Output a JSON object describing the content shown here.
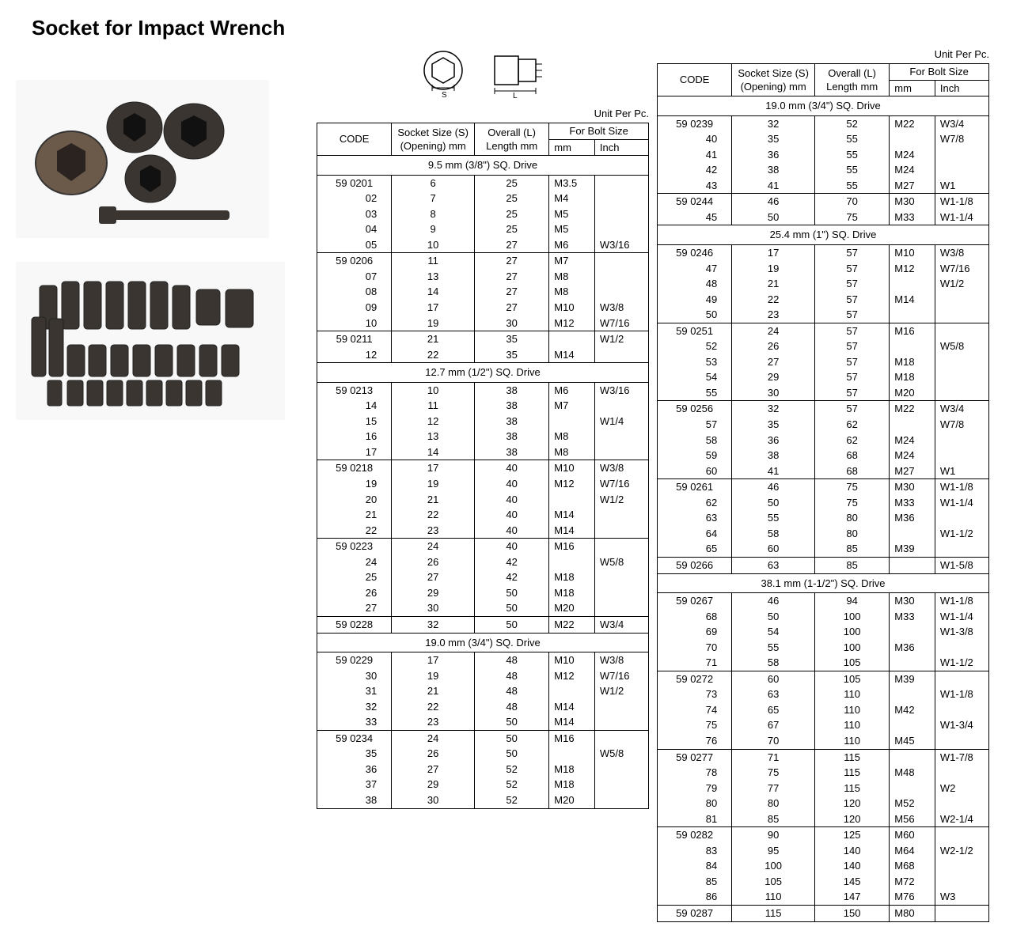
{
  "title": "Socket for Impact Wrench",
  "unit_label": "Unit Per Pc.",
  "headers": {
    "code": "CODE",
    "socket_size": "Socket Size (S) (Opening) mm",
    "overall": "Overall (L) Length mm",
    "bolt": "For Bolt Size",
    "mm": "mm",
    "inch": "Inch"
  },
  "code_prefix": "59 02 ",
  "sections_left": [
    {
      "header": "9.5 mm (3/8\") SQ. Drive",
      "groups": [
        [
          [
            "01",
            "6",
            "25",
            "M3.5",
            ""
          ],
          [
            "02",
            "7",
            "25",
            "M4",
            ""
          ],
          [
            "03",
            "8",
            "25",
            "M5",
            ""
          ],
          [
            "04",
            "9",
            "25",
            "M5",
            ""
          ],
          [
            "05",
            "10",
            "27",
            "M6",
            "W3/16"
          ]
        ],
        [
          [
            "06",
            "11",
            "27",
            "M7",
            ""
          ],
          [
            "07",
            "13",
            "27",
            "M8",
            ""
          ],
          [
            "08",
            "14",
            "27",
            "M8",
            ""
          ],
          [
            "09",
            "17",
            "27",
            "M10",
            "W3/8"
          ],
          [
            "10",
            "19",
            "30",
            "M12",
            "W7/16"
          ]
        ],
        [
          [
            "11",
            "21",
            "35",
            "",
            "W1/2"
          ],
          [
            "12",
            "22",
            "35",
            "M14",
            ""
          ]
        ]
      ]
    },
    {
      "header": "12.7 mm (1/2\") SQ. Drive",
      "groups": [
        [
          [
            "13",
            "10",
            "38",
            "M6",
            "W3/16"
          ],
          [
            "14",
            "11",
            "38",
            "M7",
            ""
          ],
          [
            "15",
            "12",
            "38",
            "",
            "W1/4"
          ],
          [
            "16",
            "13",
            "38",
            "M8",
            ""
          ],
          [
            "17",
            "14",
            "38",
            "M8",
            ""
          ]
        ],
        [
          [
            "18",
            "17",
            "40",
            "M10",
            "W3/8"
          ],
          [
            "19",
            "19",
            "40",
            "M12",
            "W7/16"
          ],
          [
            "20",
            "21",
            "40",
            "",
            "W1/2"
          ],
          [
            "21",
            "22",
            "40",
            "M14",
            ""
          ],
          [
            "22",
            "23",
            "40",
            "M14",
            ""
          ]
        ],
        [
          [
            "23",
            "24",
            "40",
            "M16",
            ""
          ],
          [
            "24",
            "26",
            "42",
            "",
            "W5/8"
          ],
          [
            "25",
            "27",
            "42",
            "M18",
            ""
          ],
          [
            "26",
            "29",
            "50",
            "M18",
            ""
          ],
          [
            "27",
            "30",
            "50",
            "M20",
            ""
          ]
        ],
        [
          [
            "28",
            "32",
            "50",
            "M22",
            "W3/4"
          ]
        ]
      ]
    },
    {
      "header": "19.0 mm (3/4\") SQ. Drive",
      "groups": [
        [
          [
            "29",
            "17",
            "48",
            "M10",
            "W3/8"
          ],
          [
            "30",
            "19",
            "48",
            "M12",
            "W7/16"
          ],
          [
            "31",
            "21",
            "48",
            "",
            "W1/2"
          ],
          [
            "32",
            "22",
            "48",
            "M14",
            ""
          ],
          [
            "33",
            "23",
            "50",
            "M14",
            ""
          ]
        ],
        [
          [
            "34",
            "24",
            "50",
            "M16",
            ""
          ],
          [
            "35",
            "26",
            "50",
            "",
            "W5/8"
          ],
          [
            "36",
            "27",
            "52",
            "M18",
            ""
          ],
          [
            "37",
            "29",
            "52",
            "M18",
            ""
          ],
          [
            "38",
            "30",
            "52",
            "M20",
            ""
          ]
        ]
      ]
    }
  ],
  "sections_right": [
    {
      "header": "19.0 mm (3/4\") SQ. Drive",
      "groups": [
        [
          [
            "39",
            "32",
            "52",
            "M22",
            "W3/4"
          ],
          [
            "40",
            "35",
            "55",
            "",
            "W7/8"
          ],
          [
            "41",
            "36",
            "55",
            "M24",
            ""
          ],
          [
            "42",
            "38",
            "55",
            "M24",
            ""
          ],
          [
            "43",
            "41",
            "55",
            "M27",
            "W1"
          ]
        ],
        [
          [
            "44",
            "46",
            "70",
            "M30",
            "W1-1/8"
          ],
          [
            "45",
            "50",
            "75",
            "M33",
            "W1-1/4"
          ]
        ]
      ]
    },
    {
      "header": "25.4 mm (1\") SQ. Drive",
      "groups": [
        [
          [
            "46",
            "17",
            "57",
            "M10",
            "W3/8"
          ],
          [
            "47",
            "19",
            "57",
            "M12",
            "W7/16"
          ],
          [
            "48",
            "21",
            "57",
            "",
            "W1/2"
          ],
          [
            "49",
            "22",
            "57",
            "M14",
            ""
          ],
          [
            "50",
            "23",
            "57",
            "",
            ""
          ]
        ],
        [
          [
            "51",
            "24",
            "57",
            "M16",
            ""
          ],
          [
            "52",
            "26",
            "57",
            "",
            "W5/8"
          ],
          [
            "53",
            "27",
            "57",
            "M18",
            ""
          ],
          [
            "54",
            "29",
            "57",
            "M18",
            ""
          ],
          [
            "55",
            "30",
            "57",
            "M20",
            ""
          ]
        ],
        [
          [
            "56",
            "32",
            "57",
            "M22",
            "W3/4"
          ],
          [
            "57",
            "35",
            "62",
            "",
            "W7/8"
          ],
          [
            "58",
            "36",
            "62",
            "M24",
            ""
          ],
          [
            "59",
            "38",
            "68",
            "M24",
            ""
          ],
          [
            "60",
            "41",
            "68",
            "M27",
            "W1"
          ]
        ],
        [
          [
            "61",
            "46",
            "75",
            "M30",
            "W1-1/8"
          ],
          [
            "62",
            "50",
            "75",
            "M33",
            "W1-1/4"
          ],
          [
            "63",
            "55",
            "80",
            "M36",
            ""
          ],
          [
            "64",
            "58",
            "80",
            "",
            "W1-1/2"
          ],
          [
            "65",
            "60",
            "85",
            "M39",
            ""
          ]
        ],
        [
          [
            "66",
            "63",
            "85",
            "",
            "W1-5/8"
          ]
        ]
      ]
    },
    {
      "header": "38.1 mm (1-1/2\") SQ. Drive",
      "groups": [
        [
          [
            "67",
            "46",
            "94",
            "M30",
            "W1-1/8"
          ],
          [
            "68",
            "50",
            "100",
            "M33",
            "W1-1/4"
          ],
          [
            "69",
            "54",
            "100",
            "",
            "W1-3/8"
          ],
          [
            "70",
            "55",
            "100",
            "M36",
            ""
          ],
          [
            "71",
            "58",
            "105",
            "",
            "W1-1/2"
          ]
        ],
        [
          [
            "72",
            "60",
            "105",
            "M39",
            ""
          ],
          [
            "73",
            "63",
            "110",
            "",
            "W1-1/8"
          ],
          [
            "74",
            "65",
            "110",
            "M42",
            ""
          ],
          [
            "75",
            "67",
            "110",
            "",
            "W1-3/4"
          ],
          [
            "76",
            "70",
            "110",
            "M45",
            ""
          ]
        ],
        [
          [
            "77",
            "71",
            "115",
            "",
            "W1-7/8"
          ],
          [
            "78",
            "75",
            "115",
            "M48",
            ""
          ],
          [
            "79",
            "77",
            "115",
            "",
            "W2"
          ],
          [
            "80",
            "80",
            "120",
            "M52",
            ""
          ],
          [
            "81",
            "85",
            "120",
            "M56",
            "W2-1/4"
          ]
        ],
        [
          [
            "82",
            "90",
            "125",
            "M60",
            ""
          ],
          [
            "83",
            "95",
            "140",
            "M64",
            "W2-1/2"
          ],
          [
            "84",
            "100",
            "140",
            "M68",
            ""
          ],
          [
            "85",
            "105",
            "145",
            "M72",
            ""
          ],
          [
            "86",
            "110",
            "147",
            "M76",
            "W3"
          ]
        ],
        [
          [
            "87",
            "115",
            "150",
            "M80",
            ""
          ]
        ]
      ]
    }
  ]
}
